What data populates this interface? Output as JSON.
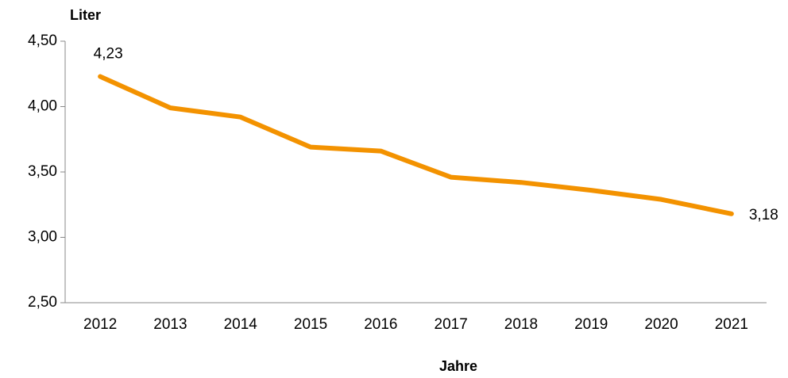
{
  "chart_data": {
    "type": "line",
    "y_label": "Liter",
    "x_label": "Jahre",
    "categories": [
      "2012",
      "2013",
      "2014",
      "2015",
      "2016",
      "2017",
      "2018",
      "2019",
      "2020",
      "2021"
    ],
    "series": [
      {
        "name": "Liter",
        "color": "#f39200",
        "values": [
          4.23,
          3.99,
          3.92,
          3.69,
          3.66,
          3.46,
          3.42,
          3.36,
          3.29,
          3.18
        ],
        "value_labels": [
          "4,23",
          null,
          null,
          null,
          null,
          null,
          null,
          null,
          null,
          "3,18"
        ]
      }
    ],
    "ylim": [
      2.5,
      4.5
    ],
    "yticks": [
      {
        "value": 2.5,
        "label": "2,50"
      },
      {
        "value": 3.0,
        "label": "3,00"
      },
      {
        "value": 3.5,
        "label": "3,50"
      },
      {
        "value": 4.0,
        "label": "4,00"
      },
      {
        "value": 4.5,
        "label": "4,50"
      }
    ],
    "grid": false,
    "legend": false
  }
}
